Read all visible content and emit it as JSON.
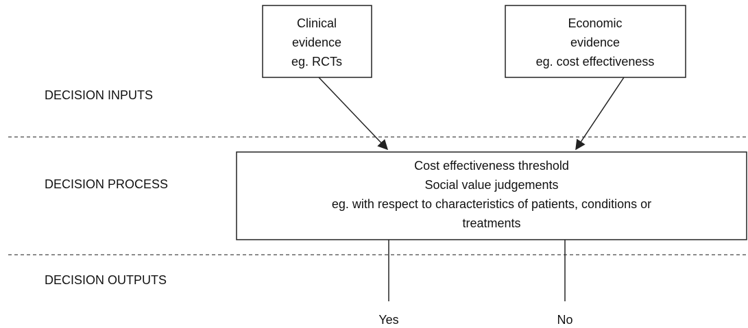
{
  "rows": [
    "DECISION INPUTS",
    "DECISION PROCESS",
    "DECISION OUTPUTS"
  ],
  "inputs": [
    {
      "lines": [
        "Clinical",
        "evidence",
        "eg. RCTs"
      ]
    },
    {
      "lines": [
        "Economic",
        "evidence",
        "eg. cost effectiveness"
      ]
    }
  ],
  "process": {
    "lines": [
      "Cost effectiveness threshold",
      "Social value judgements",
      "eg. with respect to characteristics of patients, conditions or",
      "treatments"
    ]
  },
  "outputs": [
    "Yes",
    "No"
  ]
}
